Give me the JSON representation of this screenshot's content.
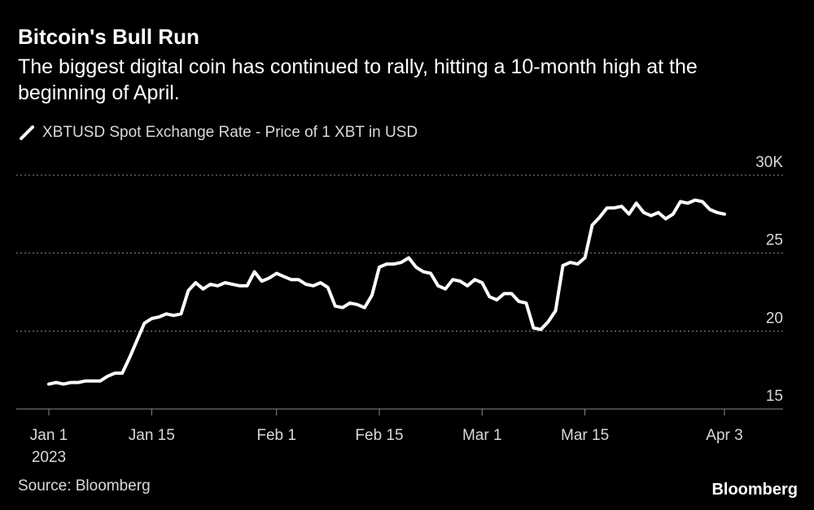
{
  "colors": {
    "background": "#000000",
    "line": "#ffffff",
    "grid": "#8a8a8a",
    "text": "#d9d9d9"
  },
  "chart_data": {
    "type": "line",
    "title": "Bitcoin's Bull Run",
    "subtitle": "The biggest digital coin has continued to rally, hitting a 10-month high at the beginning of April.",
    "legend": "XBTUSD Spot Exchange Rate - Price of 1 XBT in USD",
    "ylabel": "",
    "xlabel": "",
    "ylim": [
      15,
      30
    ],
    "yticks": [
      {
        "value": 30,
        "label": "30K"
      },
      {
        "value": 25,
        "label": "25"
      },
      {
        "value": 20,
        "label": "20"
      },
      {
        "value": 15,
        "label": "15"
      }
    ],
    "xlim": [
      0,
      92
    ],
    "xticks": [
      {
        "day": 0,
        "label": "Jan 1",
        "sublabel": "2023"
      },
      {
        "day": 14,
        "label": "Jan 15"
      },
      {
        "day": 31,
        "label": "Feb 1"
      },
      {
        "day": 45,
        "label": "Feb 15"
      },
      {
        "day": 59,
        "label": "Mar 1"
      },
      {
        "day": 73,
        "label": "Mar 15"
      },
      {
        "day": 92,
        "label": "Apr 3"
      }
    ],
    "x_unit": "days since Jan 1, 2023",
    "series": [
      {
        "name": "XBTUSD",
        "x": [
          0,
          1,
          2,
          3,
          4,
          5,
          6,
          7,
          8,
          9,
          10,
          11,
          12,
          13,
          14,
          15,
          16,
          17,
          18,
          19,
          20,
          21,
          22,
          23,
          24,
          25,
          26,
          27,
          28,
          29,
          30,
          31,
          32,
          33,
          34,
          35,
          36,
          37,
          38,
          39,
          40,
          41,
          42,
          43,
          44,
          45,
          46,
          47,
          48,
          49,
          50,
          51,
          52,
          53,
          54,
          55,
          56,
          57,
          58,
          59,
          60,
          61,
          62,
          63,
          64,
          65,
          66,
          67,
          68,
          69,
          70,
          71,
          72,
          73,
          74,
          75,
          76,
          77,
          78,
          79,
          80,
          81,
          82,
          83,
          84,
          85,
          86,
          87,
          88,
          89,
          90,
          91,
          92
        ],
        "values": [
          16.6,
          16.7,
          16.6,
          16.7,
          16.7,
          16.8,
          16.8,
          16.8,
          17.1,
          17.3,
          17.3,
          18.3,
          19.4,
          20.5,
          20.8,
          20.9,
          21.1,
          21.0,
          21.1,
          22.6,
          23.1,
          22.7,
          23.0,
          22.9,
          23.1,
          23.0,
          22.9,
          22.9,
          23.8,
          23.2,
          23.4,
          23.7,
          23.5,
          23.3,
          23.3,
          23.0,
          22.9,
          23.1,
          22.8,
          21.6,
          21.5,
          21.8,
          21.7,
          21.5,
          22.3,
          24.1,
          24.3,
          24.3,
          24.4,
          24.7,
          24.1,
          23.8,
          23.7,
          22.9,
          22.7,
          23.3,
          23.2,
          22.9,
          23.3,
          23.1,
          22.2,
          22.0,
          22.4,
          22.4,
          21.9,
          21.8,
          20.2,
          20.1,
          20.6,
          21.3,
          24.2,
          24.4,
          24.3,
          24.7,
          26.8,
          27.3,
          27.9,
          27.9,
          28.0,
          27.5,
          28.2,
          27.6,
          27.4,
          27.6,
          27.2,
          27.5,
          28.3,
          28.2,
          28.4,
          28.3,
          27.8,
          27.6,
          27.5
        ]
      }
    ]
  },
  "footer": {
    "source": "Source: Bloomberg",
    "brand": "Bloomberg"
  }
}
